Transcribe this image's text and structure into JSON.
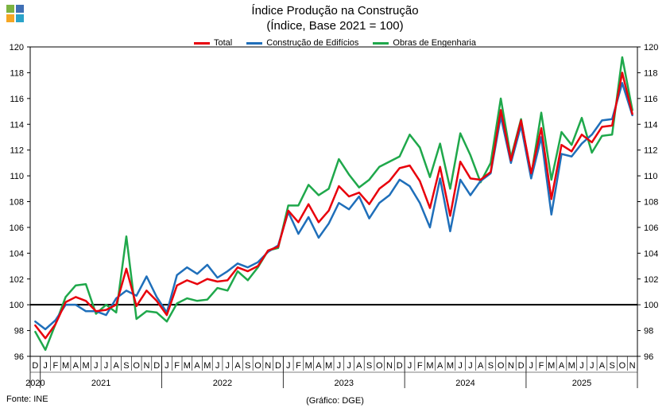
{
  "logo": {
    "colors": [
      "#7cb342",
      "#3f6fb5",
      "#f5a623",
      "#2aa3c9"
    ]
  },
  "chart_data": {
    "type": "line",
    "title": "Índice Produção na Construção",
    "subtitle": "(Índice, Base 2021 = 100)",
    "xlabel": "",
    "ylabel": "",
    "ylim": [
      96,
      120
    ],
    "yticks": [
      96,
      98,
      100,
      102,
      104,
      106,
      108,
      110,
      112,
      114,
      116,
      118,
      120
    ],
    "y_axes": [
      "left",
      "right"
    ],
    "grid": false,
    "legend_position": "top",
    "reference_line": {
      "y": 100,
      "color": "#000000"
    },
    "month_labels": [
      "D",
      "J",
      "F",
      "M",
      "A",
      "M",
      "J",
      "J",
      "A",
      "S",
      "O",
      "N",
      "D",
      "J",
      "F",
      "M",
      "A",
      "M",
      "J",
      "J",
      "A",
      "S",
      "O",
      "N",
      "D",
      "J",
      "F",
      "M",
      "A",
      "M",
      "J",
      "J",
      "A",
      "S",
      "O",
      "N",
      "D",
      "J",
      "F",
      "M",
      "A",
      "M",
      "J",
      "J",
      "A",
      "S",
      "O",
      "N",
      "D",
      "J",
      "F",
      "M",
      "A",
      "M",
      "J",
      "J",
      "A",
      "S",
      "O",
      "N"
    ],
    "year_labels": [
      "2020",
      "2021",
      "2022",
      "2023",
      "2024",
      "2025"
    ],
    "series": [
      {
        "name": "Total",
        "color": "#e8000b",
        "values": [
          98.4,
          97.4,
          98.5,
          100.2,
          100.6,
          100.3,
          99.5,
          99.6,
          100.0,
          102.8,
          99.9,
          101.1,
          100.3,
          99.2,
          101.5,
          101.9,
          101.6,
          102.0,
          101.8,
          101.9,
          102.9,
          102.6,
          103.0,
          104.2,
          104.5,
          107.3,
          106.4,
          107.8,
          106.4,
          107.3,
          109.2,
          108.4,
          108.7,
          107.8,
          109.0,
          109.6,
          110.6,
          110.8,
          109.6,
          107.5,
          110.7,
          106.9,
          111.1,
          109.8,
          109.7,
          110.3,
          115.1,
          111.2,
          114.3,
          110.2,
          113.7,
          108.2,
          112.4,
          111.9,
          113.2,
          112.6,
          113.8,
          113.9,
          118.0,
          114.8
        ]
      },
      {
        "name": "Construção de Edifícios",
        "color": "#1f6fba",
        "values": [
          98.7,
          98.1,
          98.8,
          100.0,
          100.0,
          99.5,
          99.5,
          99.2,
          100.5,
          101.1,
          100.7,
          102.2,
          100.6,
          99.4,
          102.3,
          102.9,
          102.4,
          103.1,
          102.1,
          102.6,
          103.2,
          102.9,
          103.3,
          104.1,
          104.6,
          107.2,
          105.5,
          106.8,
          105.2,
          106.3,
          107.9,
          107.4,
          108.4,
          106.7,
          107.9,
          108.5,
          109.7,
          109.2,
          107.9,
          106.0,
          109.8,
          105.7,
          109.7,
          108.5,
          109.6,
          110.2,
          114.6,
          111.0,
          113.9,
          109.8,
          113.0,
          107.0,
          111.7,
          111.5,
          112.5,
          113.2,
          114.3,
          114.4,
          117.2,
          114.7
        ]
      },
      {
        "name": "Obras de Engenharia",
        "color": "#1fa84b",
        "values": [
          97.9,
          96.5,
          98.5,
          100.6,
          101.5,
          101.6,
          99.3,
          100.0,
          99.4,
          105.3,
          98.9,
          99.5,
          99.4,
          98.7,
          100.1,
          100.5,
          100.3,
          100.4,
          101.3,
          101.1,
          102.6,
          101.9,
          102.9,
          104.2,
          104.4,
          107.7,
          107.7,
          109.3,
          108.5,
          109.0,
          111.3,
          110.1,
          109.1,
          109.7,
          110.7,
          111.1,
          111.5,
          113.2,
          112.2,
          109.9,
          112.5,
          109.0,
          113.3,
          111.6,
          109.5,
          111.0,
          116.0,
          111.4,
          114.4,
          110.0,
          114.9,
          109.7,
          113.4,
          112.4,
          114.5,
          111.8,
          113.1,
          113.2,
          119.2,
          115.1
        ]
      }
    ]
  },
  "source": "Fonte: INE",
  "credit": "(Gráfico: DGE)"
}
